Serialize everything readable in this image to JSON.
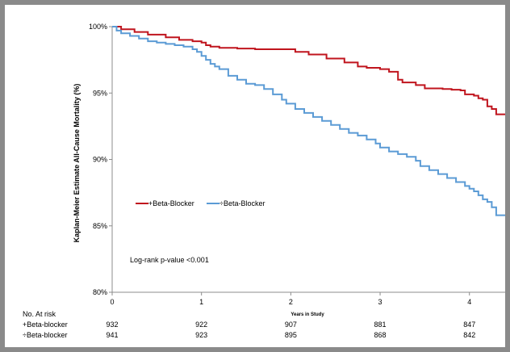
{
  "chart_data": {
    "type": "line",
    "ylabel": "Kaplan-Meier Estimate All-Cause Mortality (%)",
    "xlabel": "Years in Study",
    "xlim": [
      0,
      4.4
    ],
    "ylim": [
      80,
      100
    ],
    "x_ticks": [
      0,
      1,
      2,
      3,
      4
    ],
    "x_tick_labels": [
      "0",
      "1",
      "2",
      "3",
      "4"
    ],
    "y_ticks": [
      80,
      85,
      90,
      95,
      100
    ],
    "y_tick_labels": [
      "80%",
      "85%",
      "90%",
      "95%",
      "100%"
    ],
    "grid": false,
    "legend_position": "left",
    "annotation": "Log-rank p-value <0.001",
    "series": [
      {
        "name": "+Beta-Blocker",
        "color": "#c0151e",
        "step": true,
        "x": [
          0,
          0.1,
          0.25,
          0.4,
          0.6,
          0.75,
          0.9,
          1.0,
          1.05,
          1.1,
          1.2,
          1.4,
          1.6,
          1.8,
          2.0,
          2.05,
          2.2,
          2.4,
          2.6,
          2.75,
          2.85,
          3.0,
          3.1,
          3.2,
          3.25,
          3.4,
          3.5,
          3.7,
          3.8,
          3.9,
          3.95,
          4.05,
          4.1,
          4.15,
          4.2,
          4.25,
          4.3,
          4.4
        ],
        "y": [
          100,
          99.8,
          99.6,
          99.4,
          99.2,
          99.0,
          98.9,
          98.8,
          98.6,
          98.5,
          98.4,
          98.35,
          98.3,
          98.3,
          98.3,
          98.1,
          97.9,
          97.6,
          97.3,
          97.0,
          96.9,
          96.8,
          96.6,
          96.0,
          95.8,
          95.6,
          95.35,
          95.3,
          95.25,
          95.2,
          94.9,
          94.8,
          94.6,
          94.5,
          94.0,
          93.8,
          93.4,
          93.4
        ]
      },
      {
        "name": "÷Beta-Blocker",
        "color": "#5b9bd5",
        "step": true,
        "x": [
          0,
          0.05,
          0.1,
          0.2,
          0.3,
          0.4,
          0.5,
          0.6,
          0.7,
          0.8,
          0.9,
          0.95,
          1.0,
          1.05,
          1.1,
          1.15,
          1.2,
          1.3,
          1.4,
          1.5,
          1.6,
          1.7,
          1.8,
          1.9,
          1.95,
          2.05,
          2.15,
          2.25,
          2.35,
          2.45,
          2.55,
          2.65,
          2.75,
          2.85,
          2.95,
          3.0,
          3.1,
          3.2,
          3.3,
          3.4,
          3.45,
          3.55,
          3.65,
          3.75,
          3.85,
          3.95,
          4.0,
          4.05,
          4.1,
          4.15,
          4.2,
          4.25,
          4.3,
          4.4
        ],
        "y": [
          100,
          99.7,
          99.5,
          99.3,
          99.1,
          98.9,
          98.8,
          98.7,
          98.6,
          98.5,
          98.3,
          98.1,
          97.8,
          97.5,
          97.2,
          97.0,
          96.8,
          96.3,
          96.0,
          95.7,
          95.6,
          95.3,
          94.9,
          94.5,
          94.2,
          93.8,
          93.5,
          93.2,
          92.9,
          92.6,
          92.3,
          92.0,
          91.8,
          91.5,
          91.2,
          90.9,
          90.6,
          90.4,
          90.2,
          89.9,
          89.5,
          89.2,
          88.9,
          88.6,
          88.3,
          88.0,
          87.8,
          87.6,
          87.3,
          87.0,
          86.8,
          86.4,
          85.8,
          85.8
        ]
      }
    ]
  },
  "risk_table": {
    "title": "No. At risk",
    "rows": [
      {
        "label": "+Beta-blocker",
        "values": [
          "932",
          "922",
          "907",
          "881",
          "847"
        ]
      },
      {
        "label": "÷Beta-blocker",
        "values": [
          "941",
          "923",
          "895",
          "868",
          "842"
        ]
      }
    ]
  }
}
